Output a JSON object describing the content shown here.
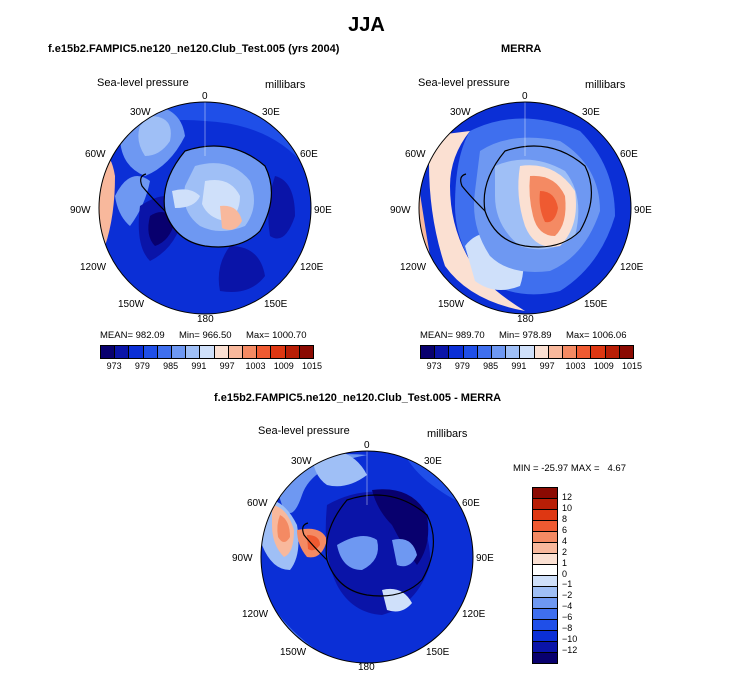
{
  "page_title": "JJA",
  "panels": [
    {
      "title": "f.e15b2.FAMPIC5.ne120_ne120.Club_Test.005 (yrs 2004)",
      "left_label": "Sea-level pressure",
      "right_label": "millibars",
      "stats": {
        "mean": "MEAN= 982.09",
        "min": "Min= 966.50",
        "max": "Max= 1000.70"
      }
    },
    {
      "title": "MERRA",
      "left_label": "Sea-level pressure",
      "right_label": "millibars",
      "stats": {
        "mean": "MEAN= 989.70",
        "min": "Min= 978.89",
        "max": "Max= 1006.06"
      }
    },
    {
      "title": "f.e15b2.FAMPIC5.ne120_ne120.Club_Test.005 - MERRA",
      "left_label": "Sea-level pressure",
      "right_label": "millibars",
      "stats": {
        "minmax": "MIN = -25.97 MAX =   4.67"
      }
    }
  ],
  "longitude_labels": [
    "0",
    "30E",
    "60E",
    "90E",
    "120E",
    "150E",
    "180",
    "150W",
    "120W",
    "90W",
    "60W",
    "30W"
  ],
  "colorbar_abs": {
    "labels": [
      "973",
      "979",
      "985",
      "991",
      "997",
      "1003",
      "1009",
      "1015"
    ],
    "colors": [
      "#08006e",
      "#0a14a8",
      "#0b2fd6",
      "#1f4fe8",
      "#3f6fee",
      "#6e98f2",
      "#9fbff6",
      "#cfe0fa",
      "#fbe0d2",
      "#f8b89c",
      "#f48a63",
      "#ef5a31",
      "#de3712",
      "#b81e06",
      "#8b0a02"
    ]
  },
  "colorbar_diff": {
    "labels": [
      "12",
      "10",
      "8",
      "6",
      "4",
      "2",
      "1",
      "0",
      "−1",
      "−2",
      "−4",
      "−6",
      "−8",
      "−10",
      "−12"
    ],
    "colors": [
      "#8b0a02",
      "#b81e06",
      "#de3712",
      "#ef5a31",
      "#f48a63",
      "#f8b89c",
      "#fbe0d2",
      "#ffffff",
      "#cfe0fa",
      "#9fbff6",
      "#6e98f2",
      "#3f6fee",
      "#1f4fe8",
      "#0b2fd6",
      "#0a14a8",
      "#08006e"
    ]
  },
  "chart_data": [
    {
      "type": "heatmap",
      "title": "f.e15b2.FAMPIC5.ne120_ne120.Club_Test.005 (yrs 2004)",
      "variable": "Sea-level pressure",
      "units": "millibars",
      "projection": "south polar stereographic",
      "mean": 982.09,
      "min": 966.5,
      "max": 1000.7,
      "contour_levels": [
        973,
        979,
        985,
        991,
        997,
        1003,
        1009,
        1015
      ]
    },
    {
      "type": "heatmap",
      "title": "MERRA",
      "variable": "Sea-level pressure",
      "units": "millibars",
      "projection": "south polar stereographic",
      "mean": 989.7,
      "min": 978.89,
      "max": 1006.06,
      "contour_levels": [
        973,
        979,
        985,
        991,
        997,
        1003,
        1009,
        1015
      ]
    },
    {
      "type": "heatmap",
      "title": "f.e15b2.FAMPIC5.ne120_ne120.Club_Test.005 - MERRA",
      "variable": "Sea-level pressure",
      "units": "millibars",
      "projection": "south polar stereographic",
      "min": -25.97,
      "max": 4.67,
      "contour_levels": [
        -12,
        -10,
        -8,
        -6,
        -4,
        -2,
        -1,
        0,
        1,
        2,
        4,
        6,
        8,
        10,
        12
      ]
    }
  ]
}
